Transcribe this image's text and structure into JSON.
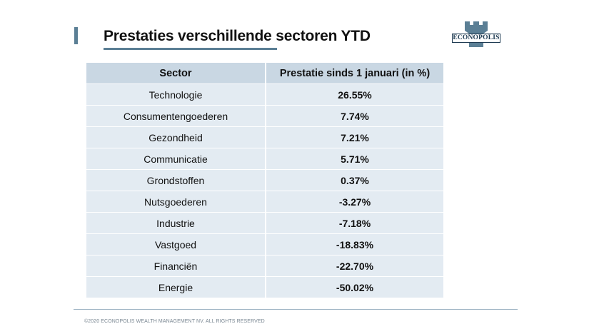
{
  "title": "Prestaties verschillende sectoren YTD",
  "logo": {
    "text": "ECONOPOLIS"
  },
  "table": {
    "headers": [
      "Sector",
      "Prestatie sinds 1 januari (in %)"
    ],
    "rows": [
      {
        "sector": "Technologie",
        "value": "26.55%",
        "sign": "pos"
      },
      {
        "sector": "Consumentengoederen",
        "value": "7.74%",
        "sign": "pos"
      },
      {
        "sector": "Gezondheid",
        "value": "7.21%",
        "sign": "pos"
      },
      {
        "sector": "Communicatie",
        "value": "5.71%",
        "sign": "pos"
      },
      {
        "sector": "Grondstoffen",
        "value": "0.37%",
        "sign": "pos"
      },
      {
        "sector": "Nutsgoederen",
        "value": "-3.27%",
        "sign": "neg"
      },
      {
        "sector": "Industrie",
        "value": "-7.18%",
        "sign": "neg"
      },
      {
        "sector": "Vastgoed",
        "value": "-18.83%",
        "sign": "neg"
      },
      {
        "sector": "Financiën",
        "value": "-22.70%",
        "sign": "neg"
      },
      {
        "sector": "Energie",
        "value": "-50.02%",
        "sign": "neg"
      }
    ]
  },
  "colors": {
    "accent": "#5b7f95",
    "positive": "#2e7d32",
    "negative": "#d32f2f",
    "header_bg": "#c9d7e3",
    "row_bg": "#e3ebf2"
  },
  "footer": "©2020 ECONOPOLIS WEALTH MANAGEMENT NV. ALL RIGHTS RESERVED"
}
